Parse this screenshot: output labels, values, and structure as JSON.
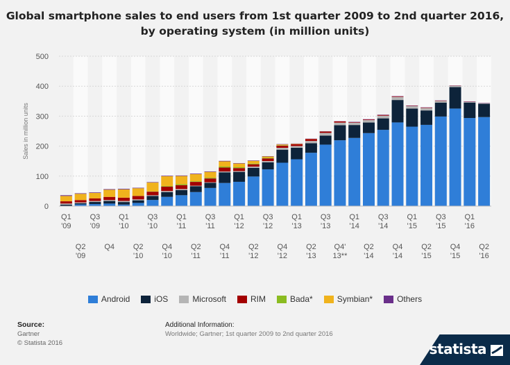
{
  "chart_data": {
    "type": "bar",
    "stacked": true,
    "title": "Global smartphone sales to end users from 1st quarter 2009 to 2nd quarter 2016, by operating system (in million units)",
    "ylabel": "Sales in million units",
    "ylim": [
      0,
      500
    ],
    "yticks": [
      0,
      100,
      200,
      300,
      400,
      500
    ],
    "grid": true,
    "legend_position": "bottom",
    "categories": [
      "Q1 '09",
      "Q2 '09",
      "Q3 '09",
      "Q4 '09",
      "Q1 '10",
      "Q2 '10",
      "Q3 '10",
      "Q4 '10",
      "Q1 '11",
      "Q2 '11",
      "Q3 '11",
      "Q4 '11",
      "Q1 '12",
      "Q2 '12",
      "Q3 '12",
      "Q4 '12",
      "Q1 '13",
      "Q2 '13",
      "Q3 '13",
      "Q4' 13**",
      "Q1 '14",
      "Q2 '14",
      "Q3 '14",
      "Q4 '14",
      "Q1 '15",
      "Q2 '15",
      "Q3 '15",
      "Q4 '15",
      "Q1 '16",
      "Q2 '16"
    ],
    "tick_labels": [
      [
        "Q1",
        "'09"
      ],
      [
        "Q2",
        "'09"
      ],
      [
        "Q3",
        "'09"
      ],
      [
        "Q4",
        ""
      ],
      [
        "Q1",
        "'10"
      ],
      [
        "Q2",
        "'10"
      ],
      [
        "Q3",
        "'10"
      ],
      [
        "Q4",
        "'10"
      ],
      [
        "Q1",
        "'11"
      ],
      [
        "Q2",
        "'11"
      ],
      [
        "Q3",
        "'11"
      ],
      [
        "Q4",
        "'11"
      ],
      [
        "Q1",
        "'12"
      ],
      [
        "Q2",
        "'12"
      ],
      [
        "Q3",
        "'12"
      ],
      [
        "Q4",
        "'12"
      ],
      [
        "Q1",
        "'13"
      ],
      [
        "Q2",
        "'13"
      ],
      [
        "Q3",
        "'13"
      ],
      [
        "Q4'",
        "13**"
      ],
      [
        "Q1",
        "'14"
      ],
      [
        "Q2",
        "'14"
      ],
      [
        "Q3",
        "'14"
      ],
      [
        "Q4",
        "'14"
      ],
      [
        "Q1",
        "'15"
      ],
      [
        "Q2",
        "'15"
      ],
      [
        "Q3",
        "'15"
      ],
      [
        "Q4",
        "'15"
      ],
      [
        "Q1",
        "'16"
      ],
      [
        "Q2",
        "'16"
      ]
    ],
    "series": [
      {
        "name": "Android",
        "color": "#2f7ed8",
        "values": [
          1.0,
          5.7,
          6.8,
          8.4,
          5.2,
          10.6,
          20.5,
          30.8,
          36.3,
          46.8,
          60.5,
          77.1,
          81.1,
          98.7,
          122.5,
          144.7,
          156.2,
          177.9,
          205.0,
          219.6,
          227.4,
          243.5,
          254.4,
          279.1,
          265.0,
          271.0,
          298.8,
          325.4,
          293.8,
          296.9
        ]
      },
      {
        "name": "iOS",
        "color": "#0d233a",
        "values": [
          3.8,
          3.6,
          7.0,
          8.7,
          8.4,
          8.7,
          13.5,
          16.0,
          16.9,
          19.6,
          17.3,
          35.5,
          33.1,
          28.9,
          23.6,
          43.5,
          38.3,
          32.0,
          30.3,
          50.2,
          43.1,
          35.3,
          38.2,
          74.8,
          60.2,
          48.1,
          46.1,
          71.5,
          51.6,
          44.4
        ]
      },
      {
        "name": "Microsoft",
        "color": "#b5b5b5",
        "values": [
          3.7,
          3.0,
          3.3,
          3.1,
          3.7,
          3.1,
          2.2,
          3.4,
          3.7,
          1.7,
          1.7,
          2.8,
          2.7,
          4.1,
          4.1,
          6.2,
          5.9,
          7.4,
          8.9,
          8.8,
          7.6,
          8.1,
          9.0,
          10.4,
          8.3,
          8.2,
          5.9,
          4.4,
          2.4,
          1.5
        ]
      },
      {
        "name": "RIM",
        "color": "#a30000",
        "values": [
          7.5,
          7.8,
          8.5,
          10.5,
          10.8,
          11.2,
          11.9,
          14.8,
          13.0,
          12.7,
          12.7,
          13.2,
          9.9,
          7.9,
          8.9,
          7.3,
          6.2,
          6.2,
          4.4,
          4.0,
          1.7,
          2.0,
          2.4,
          1.9,
          1.3,
          1.3,
          1.0,
          0.9,
          0.7,
          0.4
        ]
      },
      {
        "name": "Bada*",
        "color": "#8bbc21",
        "values": [
          0,
          0,
          0,
          0,
          0,
          0.6,
          0.9,
          2.0,
          3.0,
          2.0,
          2.5,
          3.3,
          2.8,
          2.3,
          1.9,
          1.3,
          0,
          0,
          0,
          0,
          0,
          0,
          0,
          0,
          0,
          0,
          0,
          0,
          0,
          0
        ]
      },
      {
        "name": "Symbian*",
        "color": "#f0b31d",
        "values": [
          17.8,
          20.9,
          18.3,
          23.9,
          27.6,
          25.4,
          29.5,
          32.6,
          27.5,
          23.9,
          19.5,
          17.4,
          12.5,
          9.1,
          4.4,
          2.6,
          1.3,
          0.6,
          0.5,
          0,
          0,
          0,
          0,
          0,
          0,
          0,
          0,
          0,
          0,
          0
        ]
      },
      {
        "name": "Others",
        "color": "#6a2f8a",
        "values": [
          2.5,
          1.8,
          1.8,
          2.0,
          2.0,
          1.6,
          1.5,
          1.7,
          1.7,
          1.8,
          1.6,
          1.6,
          1.3,
          1.4,
          1.2,
          1.3,
          0.9,
          0.9,
          0.8,
          0.6,
          1.2,
          1.1,
          1.0,
          0.9,
          0.9,
          0.8,
          0.7,
          0.6,
          0.9,
          0.9
        ]
      }
    ]
  },
  "footer": {
    "source_label": "Source:",
    "source_lines": [
      "Gartner",
      "© Statista 2016"
    ],
    "additional_info_label": "Additional Information:",
    "additional_info_text": "Worldwide; Gartner; 1st quarter 2009 to 2nd quarter 2016",
    "brand": "statista"
  }
}
